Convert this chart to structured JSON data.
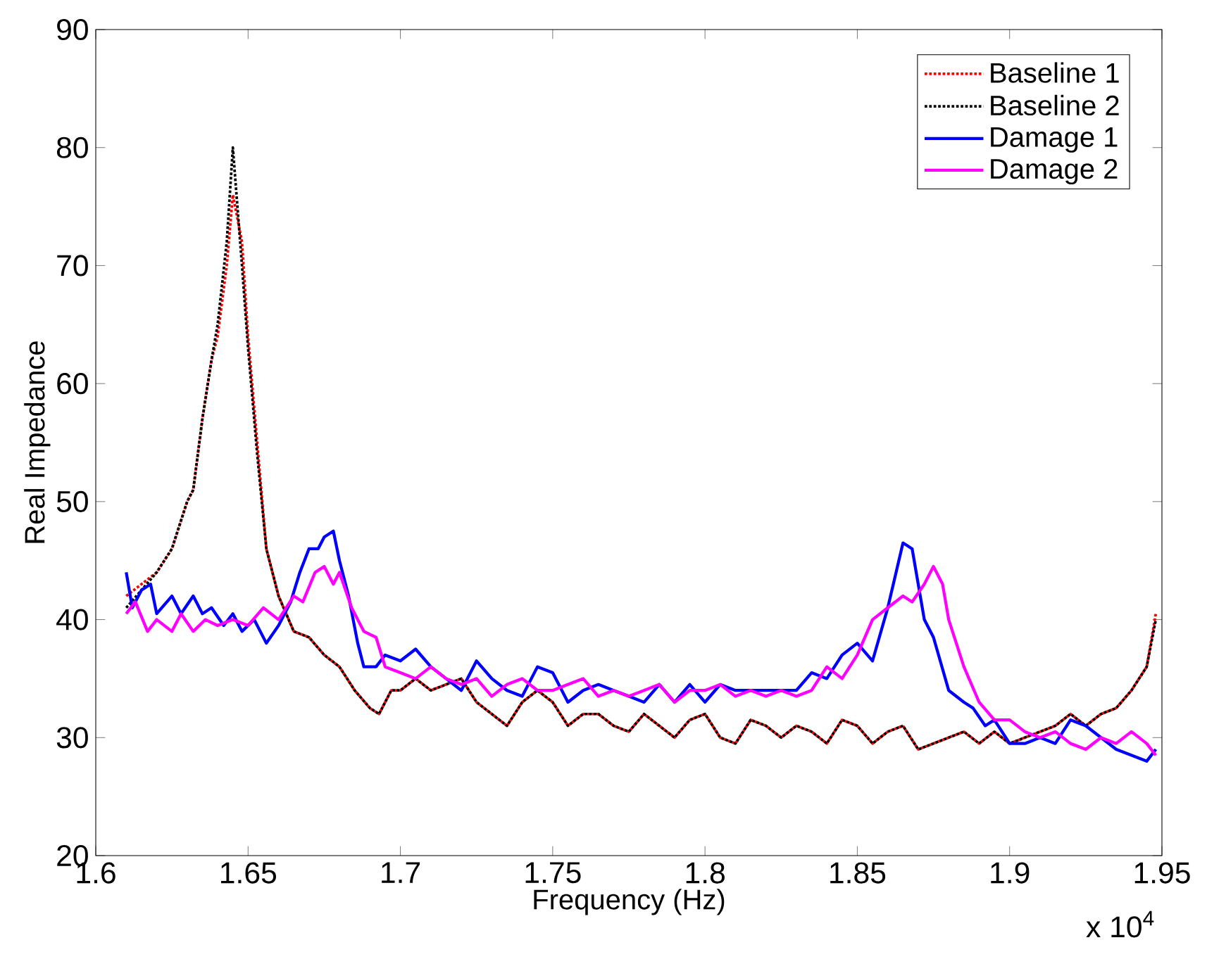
{
  "chart_data": {
    "type": "line",
    "xlabel": "Frequency (Hz)",
    "ylabel": "Real Impedance",
    "annotations": [
      "x 10$^{4}$"
    ],
    "xlim": [
      1.6,
      1.95
    ],
    "ylim": [
      20,
      90
    ],
    "xticks": [
      1.6,
      1.65,
      1.7,
      1.75,
      1.8,
      1.85,
      1.9,
      1.95
    ],
    "yticks": [
      20,
      30,
      40,
      50,
      60,
      70,
      80,
      90
    ],
    "grid": false,
    "legend": "top right",
    "series": [
      {
        "name": "Baseline 1",
        "color": "#ff0000",
        "line_style": "dotted",
        "x": [
          1.61,
          1.615,
          1.62,
          1.625,
          1.63,
          1.632,
          1.635,
          1.638,
          1.64,
          1.643,
          1.645,
          1.648,
          1.65,
          1.653,
          1.656,
          1.66,
          1.665,
          1.67,
          1.675,
          1.68,
          1.685,
          1.69,
          1.693,
          1.697,
          1.7,
          1.705,
          1.71,
          1.715,
          1.72,
          1.725,
          1.73,
          1.735,
          1.74,
          1.745,
          1.75,
          1.755,
          1.76,
          1.765,
          1.77,
          1.775,
          1.78,
          1.785,
          1.79,
          1.795,
          1.8,
          1.805,
          1.81,
          1.815,
          1.82,
          1.825,
          1.83,
          1.835,
          1.84,
          1.845,
          1.85,
          1.855,
          1.86,
          1.865,
          1.87,
          1.875,
          1.88,
          1.885,
          1.89,
          1.895,
          1.9,
          1.905,
          1.91,
          1.915,
          1.92,
          1.925,
          1.93,
          1.935,
          1.94,
          1.945,
          1.948
        ],
        "values": [
          42,
          43,
          44,
          46,
          50,
          51,
          57,
          62,
          64,
          70,
          76,
          72,
          64,
          55,
          46,
          42,
          39,
          38.5,
          37,
          36,
          34,
          32.5,
          32,
          34,
          34,
          35,
          34,
          34.5,
          35,
          33,
          32,
          31,
          33,
          34,
          33,
          31,
          32,
          32,
          31,
          30.5,
          32,
          31,
          30,
          31.5,
          32,
          30,
          29.5,
          31.5,
          31,
          30,
          31,
          30.5,
          29.5,
          31.5,
          31,
          29.5,
          30.5,
          31,
          29,
          29.5,
          30,
          30.5,
          29.5,
          30.5,
          29.5,
          30,
          30.5,
          31,
          32,
          31,
          32,
          32.5,
          34,
          36,
          40.5
        ]
      },
      {
        "name": "Baseline 2",
        "color": "#000000",
        "line_style": "dotted",
        "x": [
          1.61,
          1.615,
          1.62,
          1.625,
          1.63,
          1.632,
          1.635,
          1.638,
          1.64,
          1.643,
          1.645,
          1.648,
          1.65,
          1.653,
          1.656,
          1.66,
          1.665,
          1.67,
          1.675,
          1.68,
          1.685,
          1.69,
          1.693,
          1.697,
          1.7,
          1.705,
          1.71,
          1.715,
          1.72,
          1.725,
          1.73,
          1.735,
          1.74,
          1.745,
          1.75,
          1.755,
          1.76,
          1.765,
          1.77,
          1.775,
          1.78,
          1.785,
          1.79,
          1.795,
          1.8,
          1.805,
          1.81,
          1.815,
          1.82,
          1.825,
          1.83,
          1.835,
          1.84,
          1.845,
          1.85,
          1.855,
          1.86,
          1.865,
          1.87,
          1.875,
          1.88,
          1.885,
          1.89,
          1.895,
          1.9,
          1.905,
          1.91,
          1.915,
          1.92,
          1.925,
          1.93,
          1.935,
          1.94,
          1.945,
          1.948
        ],
        "values": [
          41,
          42.5,
          44,
          46,
          50,
          51,
          57,
          62,
          65,
          72,
          80,
          70,
          63,
          54,
          46,
          42,
          39,
          38.5,
          37,
          36,
          34,
          32.5,
          32,
          34,
          34,
          35,
          34,
          34.5,
          35,
          33,
          32,
          31,
          33,
          34,
          33,
          31,
          32,
          32,
          31,
          30.5,
          32,
          31,
          30,
          31.5,
          32,
          30,
          29.5,
          31.5,
          31,
          30,
          31,
          30.5,
          29.5,
          31.5,
          31,
          29.5,
          30.5,
          31,
          29,
          29.5,
          30,
          30.5,
          29.5,
          30.5,
          29.5,
          30,
          30.5,
          31,
          32,
          31,
          32,
          32.5,
          34,
          36,
          40
        ]
      },
      {
        "name": "Damage 1",
        "color": "#0000ff",
        "line_style": "solid",
        "x": [
          1.61,
          1.612,
          1.615,
          1.618,
          1.62,
          1.625,
          1.628,
          1.632,
          1.635,
          1.638,
          1.642,
          1.645,
          1.648,
          1.652,
          1.656,
          1.66,
          1.664,
          1.667,
          1.67,
          1.673,
          1.675,
          1.678,
          1.68,
          1.683,
          1.686,
          1.688,
          1.692,
          1.695,
          1.7,
          1.705,
          1.71,
          1.715,
          1.72,
          1.725,
          1.73,
          1.735,
          1.74,
          1.745,
          1.75,
          1.755,
          1.76,
          1.765,
          1.77,
          1.775,
          1.78,
          1.785,
          1.79,
          1.795,
          1.8,
          1.805,
          1.81,
          1.815,
          1.82,
          1.825,
          1.83,
          1.835,
          1.84,
          1.845,
          1.85,
          1.855,
          1.86,
          1.865,
          1.868,
          1.872,
          1.875,
          1.88,
          1.885,
          1.888,
          1.892,
          1.895,
          1.9,
          1.905,
          1.91,
          1.915,
          1.92,
          1.925,
          1.93,
          1.935,
          1.94,
          1.945,
          1.948
        ],
        "values": [
          44,
          41,
          42.5,
          43,
          40.5,
          42,
          40.5,
          42,
          40.5,
          41,
          39.5,
          40.5,
          39,
          40,
          38,
          39.5,
          41.5,
          44,
          46,
          46,
          47,
          47.5,
          45,
          42,
          38,
          36,
          36,
          37,
          36.5,
          37.5,
          36,
          35,
          34,
          36.5,
          35,
          34,
          33.5,
          36,
          35.5,
          33,
          34,
          34.5,
          34,
          33.5,
          33,
          34.5,
          33,
          34.5,
          33,
          34.5,
          34,
          34,
          34,
          34,
          34,
          35.5,
          35,
          37,
          38,
          36.5,
          41,
          46.5,
          46,
          40,
          38.5,
          34,
          33,
          32.5,
          31,
          31.5,
          29.5,
          29.5,
          30,
          29.5,
          31.5,
          31,
          30,
          29,
          28.5,
          28,
          29
        ]
      },
      {
        "name": "Damage 2",
        "color": "#ff00ff",
        "line_style": "solid",
        "x": [
          1.61,
          1.613,
          1.617,
          1.62,
          1.625,
          1.628,
          1.632,
          1.636,
          1.64,
          1.645,
          1.65,
          1.655,
          1.66,
          1.665,
          1.668,
          1.672,
          1.675,
          1.678,
          1.68,
          1.684,
          1.688,
          1.692,
          1.695,
          1.7,
          1.705,
          1.71,
          1.715,
          1.72,
          1.725,
          1.73,
          1.735,
          1.74,
          1.745,
          1.75,
          1.755,
          1.76,
          1.765,
          1.77,
          1.775,
          1.78,
          1.785,
          1.79,
          1.795,
          1.8,
          1.805,
          1.81,
          1.815,
          1.82,
          1.825,
          1.83,
          1.835,
          1.84,
          1.845,
          1.85,
          1.855,
          1.86,
          1.865,
          1.868,
          1.872,
          1.875,
          1.878,
          1.88,
          1.885,
          1.89,
          1.895,
          1.9,
          1.905,
          1.91,
          1.915,
          1.92,
          1.925,
          1.93,
          1.935,
          1.94,
          1.945,
          1.948
        ],
        "values": [
          40.5,
          41.5,
          39,
          40,
          39,
          40.5,
          39,
          40,
          39.5,
          40,
          39.5,
          41,
          40,
          42,
          41.5,
          44,
          44.5,
          43,
          44,
          41,
          39,
          38.5,
          36,
          35.5,
          35,
          36,
          35,
          34.5,
          35,
          33.5,
          34.5,
          35,
          34,
          34,
          34.5,
          35,
          33.5,
          34,
          33.5,
          34,
          34.5,
          33,
          34,
          34,
          34.5,
          33.5,
          34,
          33.5,
          34,
          33.5,
          34,
          36,
          35,
          37,
          40,
          41,
          42,
          41.5,
          43,
          44.5,
          43,
          40,
          36,
          33,
          31.5,
          31.5,
          30.5,
          30,
          30.5,
          29.5,
          29,
          30,
          29.5,
          30.5,
          29.5,
          28.5
        ]
      }
    ]
  }
}
